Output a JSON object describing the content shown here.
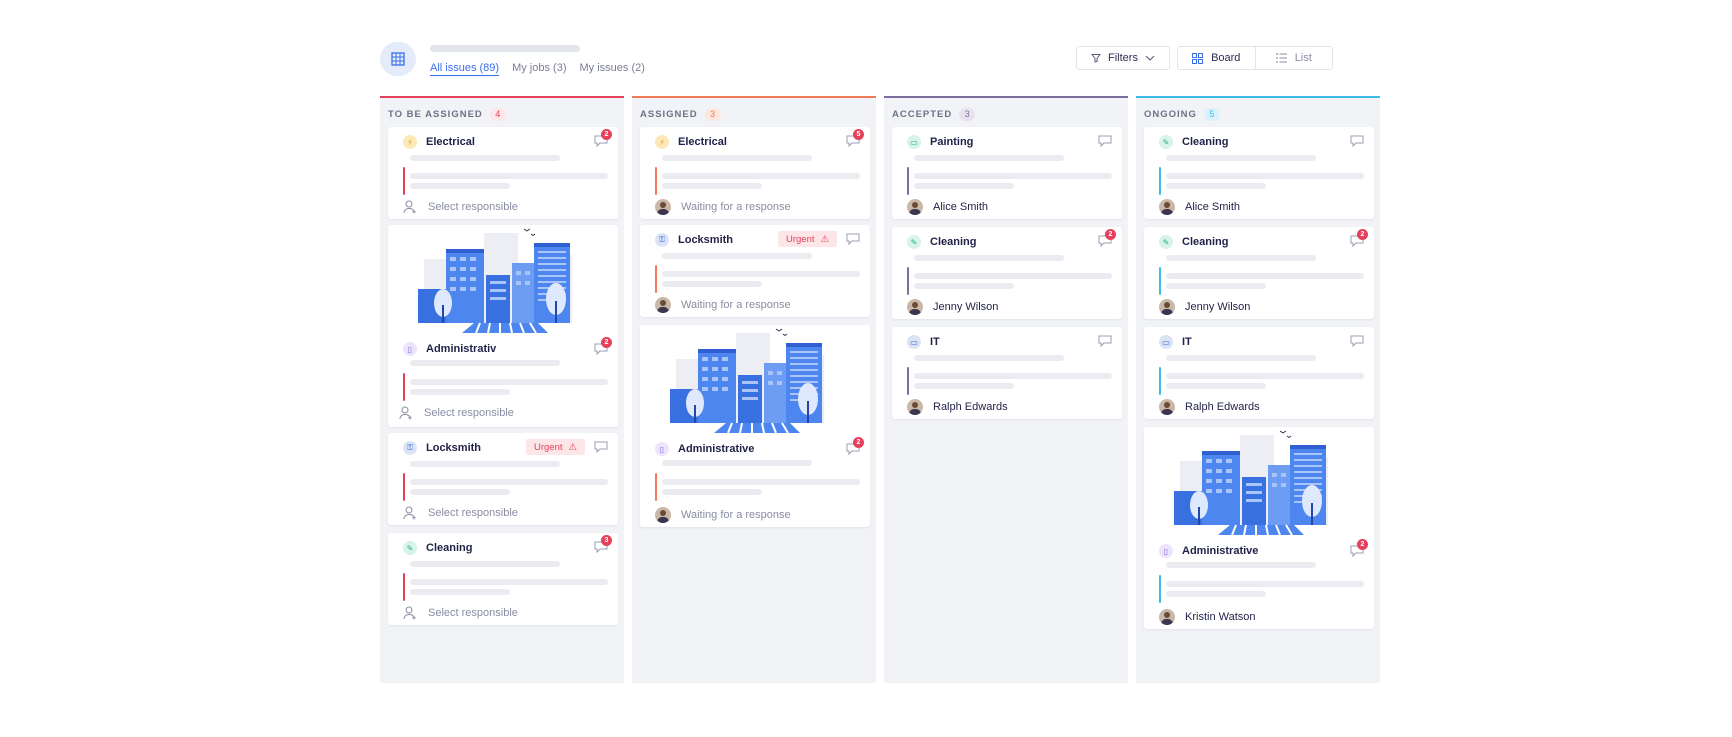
{
  "header": {
    "tabs": [
      {
        "label": "All issues (89)",
        "active": true
      },
      {
        "label": "My jobs (3)",
        "active": false
      },
      {
        "label": "My issues (2)",
        "active": false
      }
    ],
    "filters_label": "Filters",
    "view_board_label": "Board",
    "view_list_label": "List",
    "active_view": "Board"
  },
  "colors": {
    "to_be_assigned": "#e6415a",
    "assigned": "#f07a57",
    "accepted": "#7d6e9f",
    "ongoing": "#3bbce8",
    "primary": "#3a6ee8"
  },
  "columns": [
    {
      "title": "TO BE ASSIGNED",
      "count": "4",
      "cards": [
        {
          "category": "Electrical",
          "icon": "lightning-icon",
          "comments": "2",
          "status": "Select responsible"
        },
        {
          "category": "Administrativ",
          "icon": "building-icon",
          "comments": "2",
          "status": "Select responsible",
          "image": "city-illustration"
        },
        {
          "category": "Locksmith",
          "icon": "key-icon",
          "urgent": "Urgent",
          "status": "Select responsible"
        },
        {
          "category": "Cleaning",
          "icon": "broom-icon",
          "comments": "3",
          "status": "Select responsible"
        }
      ]
    },
    {
      "title": "ASSIGNED",
      "count": "3",
      "cards": [
        {
          "category": "Electrical",
          "icon": "lightning-icon",
          "comments": "5",
          "status": "Waiting for a response"
        },
        {
          "category": "Locksmith",
          "icon": "key-icon",
          "urgent": "Urgent",
          "status": "Waiting for a response"
        },
        {
          "category": "Administrative",
          "icon": "building-icon",
          "comments": "2",
          "status": "Waiting for a response",
          "image": "city-illustration"
        }
      ]
    },
    {
      "title": "ACCEPTED",
      "count": "3",
      "cards": [
        {
          "category": "Painting",
          "icon": "paint-roller-icon",
          "person": "Alice Smith"
        },
        {
          "category": "Cleaning",
          "icon": "broom-icon",
          "comments": "2",
          "person": "Jenny Wilson"
        },
        {
          "category": "IT",
          "icon": "computer-icon",
          "person": "Ralph Edwards"
        }
      ]
    },
    {
      "title": "ONGOING",
      "count": "5",
      "cards": [
        {
          "category": "Cleaning",
          "icon": "broom-icon",
          "person": "Alice Smith"
        },
        {
          "category": "Cleaning",
          "icon": "broom-icon",
          "comments": "2",
          "person": "Jenny Wilson"
        },
        {
          "category": "IT",
          "icon": "computer-icon",
          "person": "Ralph Edwards"
        },
        {
          "category": "Administrative",
          "icon": "building-icon",
          "comments": "2",
          "person": "Kristin Watson",
          "image": "city-illustration"
        }
      ]
    }
  ]
}
